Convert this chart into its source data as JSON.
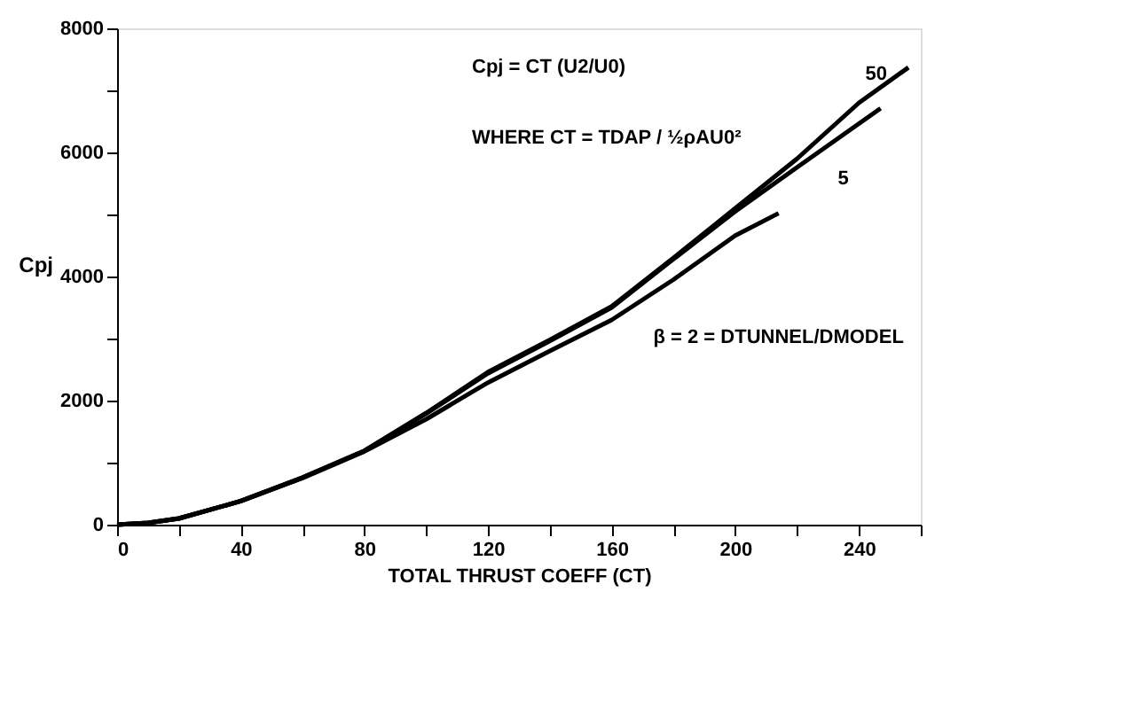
{
  "chart_data": {
    "type": "line",
    "xlabel": "TOTAL THRUST COEFF (CT)",
    "ylabel": "Cpj",
    "xlim": [
      0,
      260
    ],
    "ylim": [
      0,
      8000
    ],
    "xticks": [
      0,
      {
        "value": 20,
        "label": null
      },
      40,
      {
        "value": 60,
        "label": null
      },
      80,
      {
        "value": 100,
        "label": null
      },
      120,
      {
        "value": 140,
        "label": null
      },
      160,
      {
        "value": 180,
        "label": null
      },
      200,
      {
        "value": 220,
        "label": null
      },
      240,
      {
        "value": 260,
        "label": null
      }
    ],
    "yticks": [
      0,
      {
        "value": 1000,
        "label": null
      },
      2000,
      {
        "value": 3000,
        "label": null
      },
      4000,
      {
        "value": 5000,
        "label": null
      },
      6000,
      {
        "value": 7000,
        "label": null
      },
      8000
    ],
    "grid": false,
    "marker": "none",
    "line_style": "solid",
    "series": [
      {
        "name": "50",
        "color": "#000000",
        "x": [
          0,
          10,
          20,
          40,
          60,
          80,
          100,
          120,
          140,
          160,
          180,
          200,
          220,
          240,
          256
        ],
        "values": [
          0,
          30,
          100,
          380,
          760,
          1190,
          1800,
          2460,
          2980,
          3520,
          4300,
          5100,
          5900,
          6800,
          7370
        ]
      },
      {
        "name": "5",
        "color": "#000000",
        "x": [
          0,
          10,
          20,
          40,
          60,
          80,
          100,
          120,
          140,
          160,
          180,
          200,
          220,
          247
        ],
        "values": [
          0,
          30,
          100,
          380,
          760,
          1190,
          1790,
          2440,
          2960,
          3500,
          4280,
          5050,
          5760,
          6710
        ]
      },
      {
        "name": "β = 2 = DTUNNEL/DMODEL",
        "color": "#000000",
        "x": [
          0,
          10,
          20,
          40,
          60,
          80,
          100,
          120,
          140,
          160,
          180,
          200,
          214
        ],
        "values": [
          0,
          30,
          100,
          380,
          750,
          1180,
          1700,
          2290,
          2800,
          3300,
          3950,
          4660,
          5020
        ]
      }
    ],
    "annotations": [
      "Cpj = CT (U2/U0)",
      "WHERE CT = TDAP / ½ρAU0²"
    ]
  }
}
